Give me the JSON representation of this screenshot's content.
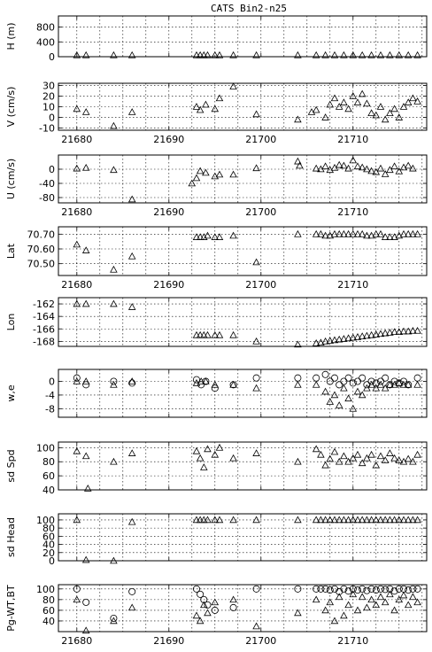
{
  "chart_data": [
    {
      "title": "CATS Bin2-n25",
      "ylabel": "H (m)",
      "type": "scatter",
      "xlim": [
        21678,
        21718
      ],
      "ylim": [
        0,
        1100
      ],
      "yticks": [
        0,
        400,
        800
      ],
      "xticks": [
        21680,
        21690,
        21700,
        21710
      ],
      "show_x_ticklabels": false,
      "grid": true,
      "series": [
        {
          "marker": "triangle",
          "x": [
            21680,
            21681,
            21684,
            21686,
            21693,
            21693.4,
            21693.8,
            21694.2,
            21695,
            21695.5,
            21697,
            21699.5,
            21704,
            21706,
            21707,
            21708,
            21709,
            21710,
            21711,
            21712,
            21713,
            21714,
            21715,
            21716,
            21717
          ],
          "y": [
            40,
            40,
            40,
            40,
            40,
            40,
            40,
            40,
            40,
            40,
            40,
            40,
            40,
            40,
            40,
            40,
            40,
            40,
            40,
            40,
            40,
            40,
            40,
            40,
            40
          ]
        }
      ]
    },
    {
      "ylabel": "V (cm/s)",
      "type": "scatter",
      "xlim": [
        21678,
        21718
      ],
      "ylim": [
        -12,
        32
      ],
      "yticks": [
        -10,
        0,
        10,
        20,
        30
      ],
      "xticks": [
        21680,
        21690,
        21700,
        21710
      ],
      "show_x_ticklabels": true,
      "grid": true,
      "series": [
        {
          "marker": "triangle",
          "x": [
            21680,
            21681,
            21684,
            21686,
            21693,
            21693.4,
            21694,
            21695,
            21695.5,
            21697,
            21699.5,
            21704,
            21705.5,
            21706,
            21707,
            21707.5,
            21708,
            21708.5,
            21709,
            21709.5,
            21710,
            21710.5,
            21711,
            21711.5,
            21712,
            21712.5,
            21713,
            21713.5,
            21714,
            21714.5,
            21715,
            21715.5,
            21716,
            21716.5,
            21717
          ],
          "y": [
            8,
            5,
            -8,
            5,
            10,
            7,
            12,
            8,
            18,
            29,
            3,
            -2,
            5,
            7,
            0,
            12,
            18,
            10,
            14,
            8,
            20,
            14,
            22,
            13,
            4,
            2,
            10,
            -2,
            4,
            8,
            0,
            10,
            14,
            18,
            15
          ]
        }
      ]
    },
    {
      "ylabel": "U (cm/s)",
      "type": "scatter",
      "xlim": [
        21678,
        21718
      ],
      "ylim": [
        -95,
        40
      ],
      "yticks": [
        -80,
        -40,
        0
      ],
      "xticks": [
        21680,
        21690,
        21700,
        21710
      ],
      "show_x_ticklabels": true,
      "grid": true,
      "series": [
        {
          "marker": "triangle",
          "x": [
            21680,
            21681,
            21684,
            21686,
            21692.5,
            21693,
            21693.4,
            21694,
            21695,
            21695.5,
            21697,
            21699.5,
            21704,
            21704.2,
            21706,
            21706.5,
            21707,
            21707.5,
            21708,
            21708.5,
            21709,
            21709.5,
            21710,
            21710.5,
            21711,
            21711.5,
            21712,
            21712.5,
            21713,
            21713.5,
            21714,
            21714.5,
            21715,
            21715.5,
            21716,
            21716.5
          ],
          "y": [
            2,
            4,
            -2,
            -85,
            -40,
            -25,
            -5,
            -10,
            -20,
            -15,
            -15,
            3,
            22,
            10,
            2,
            0,
            8,
            -2,
            4,
            12,
            10,
            2,
            25,
            8,
            5,
            0,
            -5,
            -8,
            2,
            -14,
            -2,
            8,
            -6,
            5,
            10,
            2
          ]
        }
      ]
    },
    {
      "ylabel": "Lat",
      "type": "scatter",
      "xlim": [
        21678,
        21718
      ],
      "ylim": [
        70.42,
        70.75
      ],
      "yticks": [
        70.5,
        70.6,
        70.7
      ],
      "xticks": [
        21680,
        21690,
        21700,
        21710
      ],
      "show_x_ticklabels": true,
      "grid": true,
      "series": [
        {
          "marker": "triangle",
          "x": [
            21680,
            21681,
            21684,
            21686,
            21693,
            21693.4,
            21693.8,
            21694.2,
            21695,
            21695.5,
            21697,
            21699.5,
            21704,
            21706,
            21706.5,
            21707,
            21707.5,
            21708,
            21708.5,
            21709,
            21709.5,
            21710,
            21710.5,
            21711,
            21711.5,
            21712,
            21712.5,
            21713,
            21713.5,
            21714,
            21714.5,
            21715,
            21715.5,
            21716,
            21716.5,
            21717
          ],
          "y": [
            70.63,
            70.59,
            70.46,
            70.55,
            70.68,
            70.68,
            70.68,
            70.69,
            70.68,
            70.68,
            70.69,
            70.51,
            70.7,
            70.7,
            70.7,
            70.69,
            70.69,
            70.7,
            70.7,
            70.7,
            70.7,
            70.7,
            70.7,
            70.7,
            70.69,
            70.69,
            70.7,
            70.7,
            70.68,
            70.68,
            70.68,
            70.69,
            70.7,
            70.7,
            70.7,
            70.7
          ]
        }
      ]
    },
    {
      "ylabel": "Lon",
      "type": "scatter",
      "xlim": [
        21678,
        21718
      ],
      "ylim": [
        -168.8,
        -161
      ],
      "yticks": [
        -168,
        -166,
        -164,
        -162
      ],
      "xticks": [
        21680,
        21690,
        21700,
        21710
      ],
      "show_x_ticklabels": false,
      "grid": true,
      "series": [
        {
          "marker": "triangle",
          "x": [
            21680,
            21681,
            21684,
            21686,
            21693,
            21693.4,
            21693.8,
            21694.2,
            21695,
            21695.5,
            21697,
            21699.5,
            21704,
            21706,
            21706.5,
            21707,
            21707.5,
            21708,
            21708.5,
            21709,
            21709.5,
            21710,
            21710.5,
            21711,
            21711.5,
            21712,
            21712.5,
            21713,
            21713.5,
            21714,
            21714.5,
            21715,
            21715.5,
            21716,
            21716.5,
            21717
          ],
          "y": [
            -162,
            -162,
            -162,
            -162.5,
            -167,
            -167,
            -167,
            -167,
            -167,
            -167,
            -167,
            -168,
            -168.5,
            -168.3,
            -168.2,
            -168,
            -167.9,
            -167.8,
            -167.7,
            -167.6,
            -167.5,
            -167.4,
            -167.3,
            -167.2,
            -167.1,
            -167,
            -166.9,
            -166.8,
            -166.7,
            -166.6,
            -166.5,
            -166.5,
            -166.4,
            -166.4,
            -166.3,
            -166.3
          ]
        }
      ]
    },
    {
      "ylabel": "w,e",
      "type": "scatter",
      "xlim": [
        21678,
        21718
      ],
      "ylim": [
        -10.5,
        3.5
      ],
      "yticks": [
        -8,
        -4,
        0
      ],
      "xticks": [
        21680,
        21690,
        21700,
        21710
      ],
      "show_x_ticklabels": false,
      "grid": true,
      "series": [
        {
          "marker": "circle",
          "x": [
            21680,
            21681,
            21684,
            21686,
            21693,
            21693.5,
            21694,
            21695,
            21697,
            21699.5,
            21704,
            21706,
            21707,
            21707.5,
            21708,
            21708.5,
            21709,
            21709.5,
            21710,
            21710.5,
            21711,
            21711.5,
            21712,
            21712.5,
            21713,
            21713.5,
            21714,
            21714.5,
            21715,
            21715.5,
            21716,
            21717
          ],
          "y": [
            1,
            -1,
            0,
            -0.5,
            0.5,
            -1,
            0,
            -2,
            -1,
            1,
            1,
            1,
            2,
            0,
            1,
            -1,
            0,
            1,
            -0.5,
            0,
            1,
            -1,
            0,
            -0.5,
            0,
            1,
            -1,
            0,
            -0.5,
            0,
            -1,
            1
          ]
        },
        {
          "marker": "triangle",
          "x": [
            21680,
            21681,
            21684,
            21686,
            21693,
            21693.5,
            21694,
            21695,
            21697,
            21699.5,
            21704,
            21706,
            21707,
            21707.5,
            21708,
            21708.5,
            21709,
            21709.5,
            21710,
            21710.5,
            21711,
            21711.5,
            21712,
            21712.5,
            21713,
            21713.5,
            21714,
            21714.5,
            21715,
            21715.5,
            21716,
            21717
          ],
          "y": [
            0,
            0,
            -1,
            0,
            -0.5,
            0,
            0,
            -1,
            -1,
            -2,
            -1,
            -1,
            -3,
            -6,
            -4,
            -7,
            -2,
            -5,
            -8,
            -3,
            -4,
            -2,
            -1,
            -2,
            -1,
            -2,
            -1,
            -1,
            -0.5,
            -1,
            -1,
            -1
          ]
        }
      ]
    },
    {
      "ylabel": "sd Spd",
      "type": "scatter",
      "xlim": [
        21678,
        21718
      ],
      "ylim": [
        40,
        108
      ],
      "yticks": [
        40,
        60,
        80,
        100
      ],
      "xticks": [
        21680,
        21690,
        21700,
        21710
      ],
      "show_x_ticklabels": false,
      "grid": true,
      "series": [
        {
          "marker": "triangle",
          "x": [
            21680,
            21681,
            21681.2,
            21684,
            21686,
            21693,
            21693.4,
            21693.8,
            21694.2,
            21695,
            21695.5,
            21697,
            21699.5,
            21704,
            21706,
            21706.5,
            21707,
            21707.5,
            21708,
            21708.5,
            21709,
            21709.5,
            21710,
            21710.5,
            21711,
            21711.5,
            21712,
            21712.5,
            21713,
            21713.5,
            21714,
            21714.5,
            21715,
            21715.5,
            21716,
            21716.5,
            21717
          ],
          "y": [
            95,
            88,
            42,
            80,
            92,
            95,
            85,
            72,
            98,
            90,
            100,
            85,
            92,
            80,
            98,
            90,
            75,
            84,
            94,
            80,
            88,
            80,
            85,
            90,
            78,
            85,
            90,
            75,
            88,
            82,
            92,
            85,
            82,
            80,
            84,
            80,
            90
          ]
        }
      ]
    },
    {
      "ylabel": "sd Head",
      "type": "scatter",
      "xlim": [
        21678,
        21718
      ],
      "ylim": [
        0,
        115
      ],
      "yticks": [
        0,
        20,
        40,
        60,
        80,
        100
      ],
      "xticks": [
        21680,
        21690,
        21700,
        21710
      ],
      "show_x_ticklabels": false,
      "grid": true,
      "series": [
        {
          "marker": "triangle",
          "x": [
            21680,
            21681,
            21684,
            21686,
            21693,
            21693.4,
            21693.8,
            21694.2,
            21695,
            21695.5,
            21697,
            21699.5,
            21704,
            21706,
            21706.5,
            21707,
            21707.5,
            21708,
            21708.5,
            21709,
            21709.5,
            21710,
            21710.5,
            21711,
            21711.5,
            21712,
            21712.5,
            21713,
            21713.5,
            21714,
            21714.5,
            21715,
            21715.5,
            21716,
            21716.5,
            21717
          ],
          "y": [
            100,
            2,
            0,
            95,
            100,
            100,
            100,
            100,
            100,
            100,
            100,
            100,
            100,
            100,
            100,
            100,
            100,
            100,
            100,
            100,
            100,
            100,
            100,
            100,
            100,
            100,
            100,
            100,
            100,
            100,
            100,
            100,
            100,
            100,
            100,
            100
          ]
        }
      ]
    },
    {
      "ylabel": "Pg-WT,BT",
      "type": "scatter",
      "xlim": [
        21678,
        21718
      ],
      "ylim": [
        20,
        108
      ],
      "yticks": [
        40,
        60,
        80,
        100
      ],
      "xticks": [
        21680,
        21690,
        21700,
        21710
      ],
      "show_x_ticklabels": true,
      "grid": true,
      "series": [
        {
          "marker": "circle",
          "x": [
            21680,
            21681,
            21684,
            21686,
            21693,
            21693.4,
            21693.8,
            21694.2,
            21695,
            21697,
            21699.5,
            21704,
            21706,
            21706.5,
            21707,
            21707.5,
            21708,
            21708.5,
            21709,
            21709.5,
            21710,
            21710.5,
            21711,
            21711.5,
            21712,
            21712.5,
            21713,
            21713.5,
            21714,
            21714.5,
            21715,
            21715.5,
            21716,
            21716.5,
            21717
          ],
          "y": [
            100,
            75,
            45,
            95,
            100,
            90,
            80,
            70,
            60,
            65,
            100,
            100,
            100,
            100,
            100,
            98,
            100,
            95,
            100,
            96,
            100,
            98,
            100,
            97,
            100,
            98,
            100,
            99,
            100,
            96,
            100,
            100,
            98,
            100,
            100
          ]
        },
        {
          "marker": "triangle",
          "x": [
            21680,
            21681,
            21684,
            21686,
            21693,
            21693.4,
            21693.8,
            21694.2,
            21695,
            21697,
            21699.5,
            21704,
            21706,
            21707,
            21707.5,
            21708,
            21708.5,
            21709,
            21709.5,
            21710,
            21710.5,
            21711,
            21711.5,
            21712,
            21712.5,
            21713,
            21713.5,
            21714,
            21714.5,
            21715,
            21715.5,
            21716,
            21716.5,
            21717
          ],
          "y": [
            80,
            22,
            40,
            65,
            50,
            40,
            70,
            55,
            75,
            80,
            30,
            55,
            80,
            60,
            75,
            40,
            85,
            50,
            70,
            90,
            60,
            85,
            65,
            80,
            70,
            85,
            75,
            90,
            60,
            80,
            88,
            70,
            85,
            75
          ]
        }
      ]
    }
  ]
}
